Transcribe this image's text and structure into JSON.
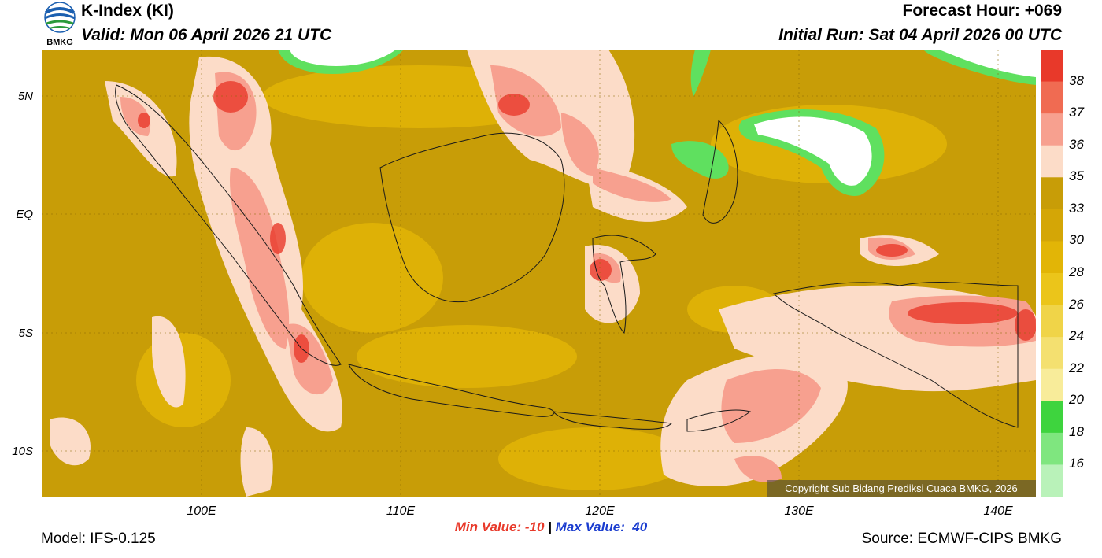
{
  "header": {
    "logo_text": "BMKG",
    "title": "K-Index (KI)",
    "valid": "Valid: Mon 06 April 2026 21 UTC",
    "forecast_hour": "Forecast Hour: +069",
    "initial_run": "Initial Run: Sat 04 April 2026 00 UTC"
  },
  "axes": {
    "lat_labels": [
      "5N",
      "EQ",
      "5S",
      "10S"
    ],
    "lon_labels": [
      "100E",
      "110E",
      "120E",
      "130E",
      "140E"
    ]
  },
  "colorbar": {
    "labels": [
      "38",
      "37",
      "36",
      "35",
      "33",
      "30",
      "28",
      "26",
      "24",
      "22",
      "20",
      "18",
      "16"
    ],
    "colors": [
      "#e8392a",
      "#f06b52",
      "#f7a08f",
      "#fcdcc8",
      "#c89d07",
      "#d4a606",
      "#e2b506",
      "#ebc51a",
      "#f0d448",
      "#f4e070",
      "#f8ec9a",
      "#3ed43e",
      "#7fe67f",
      "#b9f2b9"
    ]
  },
  "map_colors": {
    "ocean": "#c89d07",
    "high": "#f7a08f",
    "veryhigh": "#e8392a",
    "moderate": "#fcdcc8",
    "low": "#e2b506",
    "green": "#5fe05f",
    "white": "#ffffff"
  },
  "footer": {
    "copyright": "Copyright Sub Bidang Prediksi Cuaca BMKG, 2026",
    "min_label": "Min Value: -10",
    "max_label": "Max Value:  40",
    "separator": "|",
    "model": "Model: IFS-0.125",
    "source": "Source: ECMWF-CIPS BMKG"
  }
}
